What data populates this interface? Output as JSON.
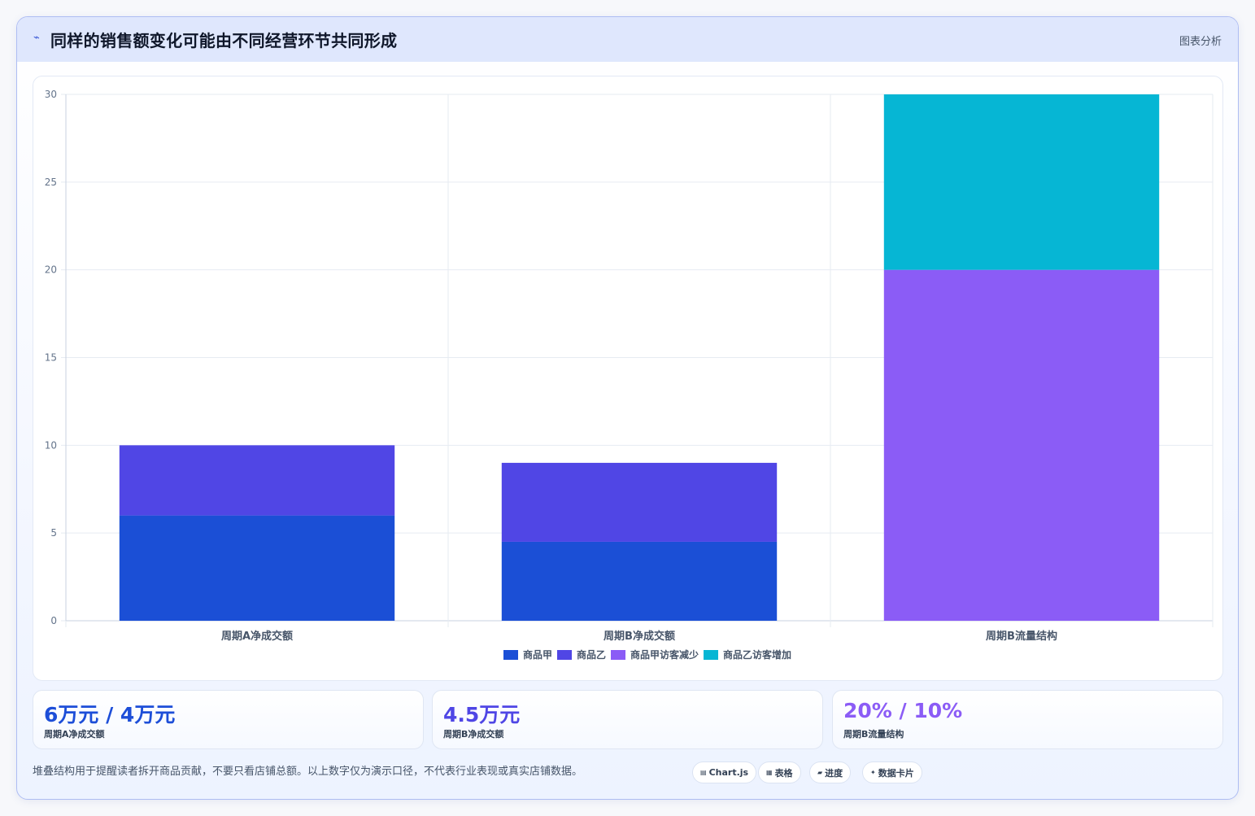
{
  "header": {
    "icon": "chart-line-icon",
    "title": "同样的销售额变化可能由不同经营环节共同形成",
    "tag": "图表分析"
  },
  "chart_data": {
    "type": "bar",
    "stacked": true,
    "categories": [
      "周期A净成交额",
      "周期B净成交额",
      "周期B流量结构"
    ],
    "series": [
      {
        "name": "商品甲",
        "values": [
          6,
          4.5,
          0
        ],
        "color": "#1b4fd6"
      },
      {
        "name": "商品乙",
        "values": [
          4,
          4.5,
          0
        ],
        "color": "#5046e5"
      },
      {
        "name": "商品甲访客减少",
        "values": [
          0,
          0,
          20
        ],
        "color": "#8b5cf6"
      },
      {
        "name": "商品乙访客增加",
        "values": [
          0,
          0,
          10
        ],
        "color": "#06b6d4"
      }
    ],
    "ylim": [
      0,
      30
    ],
    "yticks": [
      0,
      5,
      10,
      15,
      20,
      25,
      30
    ],
    "grid": true,
    "legend_position": "bottom"
  },
  "stats": [
    {
      "value": "6万元 / 4万元",
      "label": "周期A净成交额",
      "color": "#1d4ed8"
    },
    {
      "value": "4.5万元",
      "label": "周期B净成交额",
      "color": "#4f46e5"
    },
    {
      "value": "20% / 10%",
      "label": "周期B流量结构",
      "color": "#8b5cf6"
    }
  ],
  "footnote": "堆叠结构用于提醒读者拆开商品贡献，不要只看店铺总额。以上数字仅为演示口径，不代表行业表现或真实店铺数据。",
  "chips": [
    {
      "icon": "chart-icon",
      "glyph": "▤",
      "label": "Chart.js"
    },
    {
      "icon": "table-icon",
      "glyph": "▦",
      "label": "表格"
    },
    {
      "icon": "progress-icon",
      "glyph": "▰",
      "label": "进度"
    },
    {
      "icon": "sparkle-icon",
      "glyph": "✦",
      "label": "数据卡片"
    }
  ]
}
